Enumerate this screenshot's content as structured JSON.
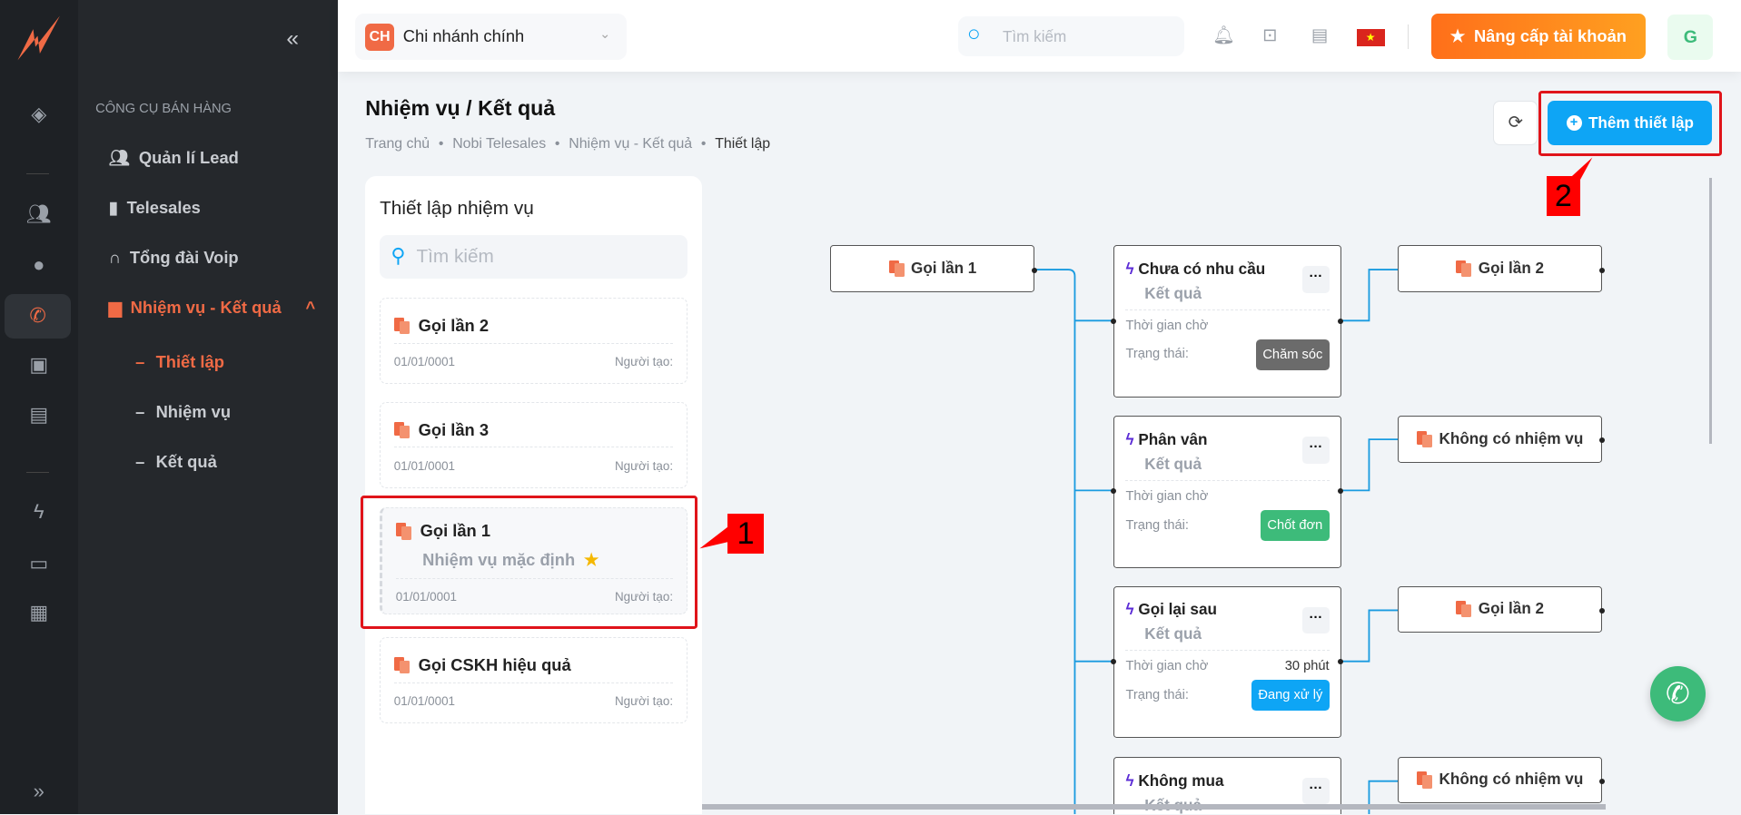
{
  "header": {
    "branch_badge": "CH",
    "branch_name": "Chi nhánh chính",
    "search_placeholder": "Tìm kiếm",
    "upgrade_label": "Nâng cấp tài khoản",
    "avatar": "G"
  },
  "sidebar": {
    "section": "CÔNG CỤ BÁN HÀNG",
    "items": [
      {
        "label": "Quản lí Lead",
        "icon": "users-icon"
      },
      {
        "label": "Telesales",
        "icon": "phone-icon"
      },
      {
        "label": "Tổng đài Voip",
        "icon": "headphones-icon"
      },
      {
        "label": "Nhiệm vụ - Kết quả",
        "icon": "calendar-icon",
        "active": true
      }
    ],
    "subitems": [
      {
        "label": "Thiết lập",
        "active": true
      },
      {
        "label": "Nhiệm vụ"
      },
      {
        "label": "Kết quả"
      }
    ]
  },
  "page": {
    "title": "Nhiệm vụ / Kết quả",
    "breadcrumb": [
      "Trang chủ",
      "Nobi Telesales",
      "Nhiệm vụ - Kết quả",
      "Thiết lập"
    ],
    "add_label": "Thêm thiết lập"
  },
  "panel": {
    "title": "Thiết lập nhiệm vụ",
    "search_placeholder": "Tìm kiếm",
    "creator_label": "Người tạo:",
    "cards": [
      {
        "name": "Gọi lần 2",
        "date": "01/01/0001"
      },
      {
        "name": "Gọi lần 3",
        "date": "01/01/0001"
      },
      {
        "name": "Gọi lần 1",
        "subtitle": "Nhiệm vụ mặc định",
        "date": "01/01/0001",
        "selected": true
      },
      {
        "name": "Gọi CSKH hiệu quả",
        "date": "01/01/0001"
      }
    ]
  },
  "flow": {
    "root": "Gọi lần 1",
    "result_label": "Kết quả",
    "wait_label": "Thời gian chờ",
    "status_label": "Trạng thái:",
    "results": [
      {
        "name": "Chưa có nhu cầu",
        "wait": "",
        "status": "Chăm sóc",
        "status_color": "#6b6b6b",
        "target": "Gọi lần 2"
      },
      {
        "name": "Phân vân",
        "wait": "",
        "status": "Chốt đơn",
        "status_color": "#3dbb7a",
        "target": "Không có nhiệm vụ"
      },
      {
        "name": "Gọi lại sau",
        "wait": "30 phút",
        "status": "Đang xử lý",
        "status_color": "#0ea5f5",
        "target": "Gọi lần 2"
      },
      {
        "name": "Không mua",
        "target": "Không có nhiệm vụ"
      }
    ]
  },
  "annotations": {
    "one": "1",
    "two": "2"
  },
  "colors": {
    "accent": "#f06a45",
    "primary": "#0ea5f5",
    "upgrade": "#ff7a1a"
  }
}
